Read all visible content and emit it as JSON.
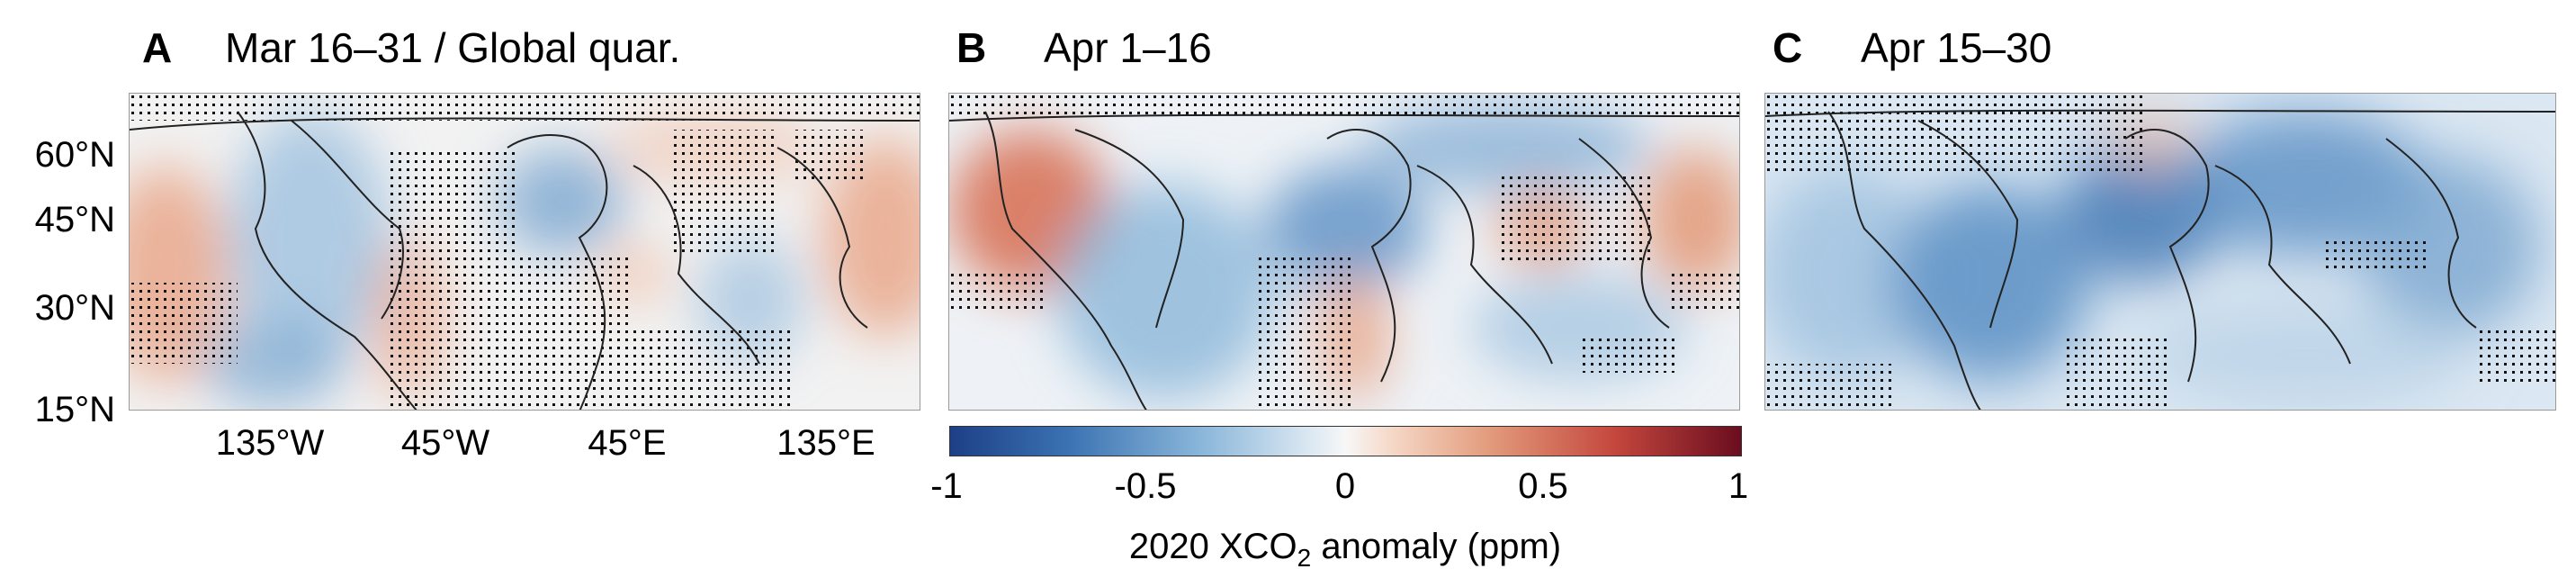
{
  "panels": [
    {
      "letter": "A",
      "title": "Mar 16–31 / Global quar."
    },
    {
      "letter": "B",
      "title": "Apr 1–16"
    },
    {
      "letter": "C",
      "title": "Apr 15–30"
    }
  ],
  "y_axis_labels": [
    "60°N",
    "45°N",
    "30°N",
    "15°N"
  ],
  "x_axis_labels": [
    "135°W",
    "45°W",
    "45°E",
    "135°E"
  ],
  "colorbar": {
    "ticks": [
      "-1",
      "-0.5",
      "0",
      "0.5",
      "1"
    ],
    "title_prefix": "2020 XCO",
    "title_subscript": "2",
    "title_suffix": " anomaly (ppm)",
    "range": [
      -1,
      1
    ],
    "colors": [
      "#1d3f86",
      "#3b73b2",
      "#8bb7da",
      "#f7f7f7",
      "#e39c7d",
      "#c4473d",
      "#6a0d1f"
    ]
  },
  "colors": {
    "anomaly_negative": "#6f9fcb",
    "anomaly_positive": "#e8a285",
    "neutral": "#f2f2f2",
    "coastline": "#222222",
    "stipple": "#111111"
  }
}
